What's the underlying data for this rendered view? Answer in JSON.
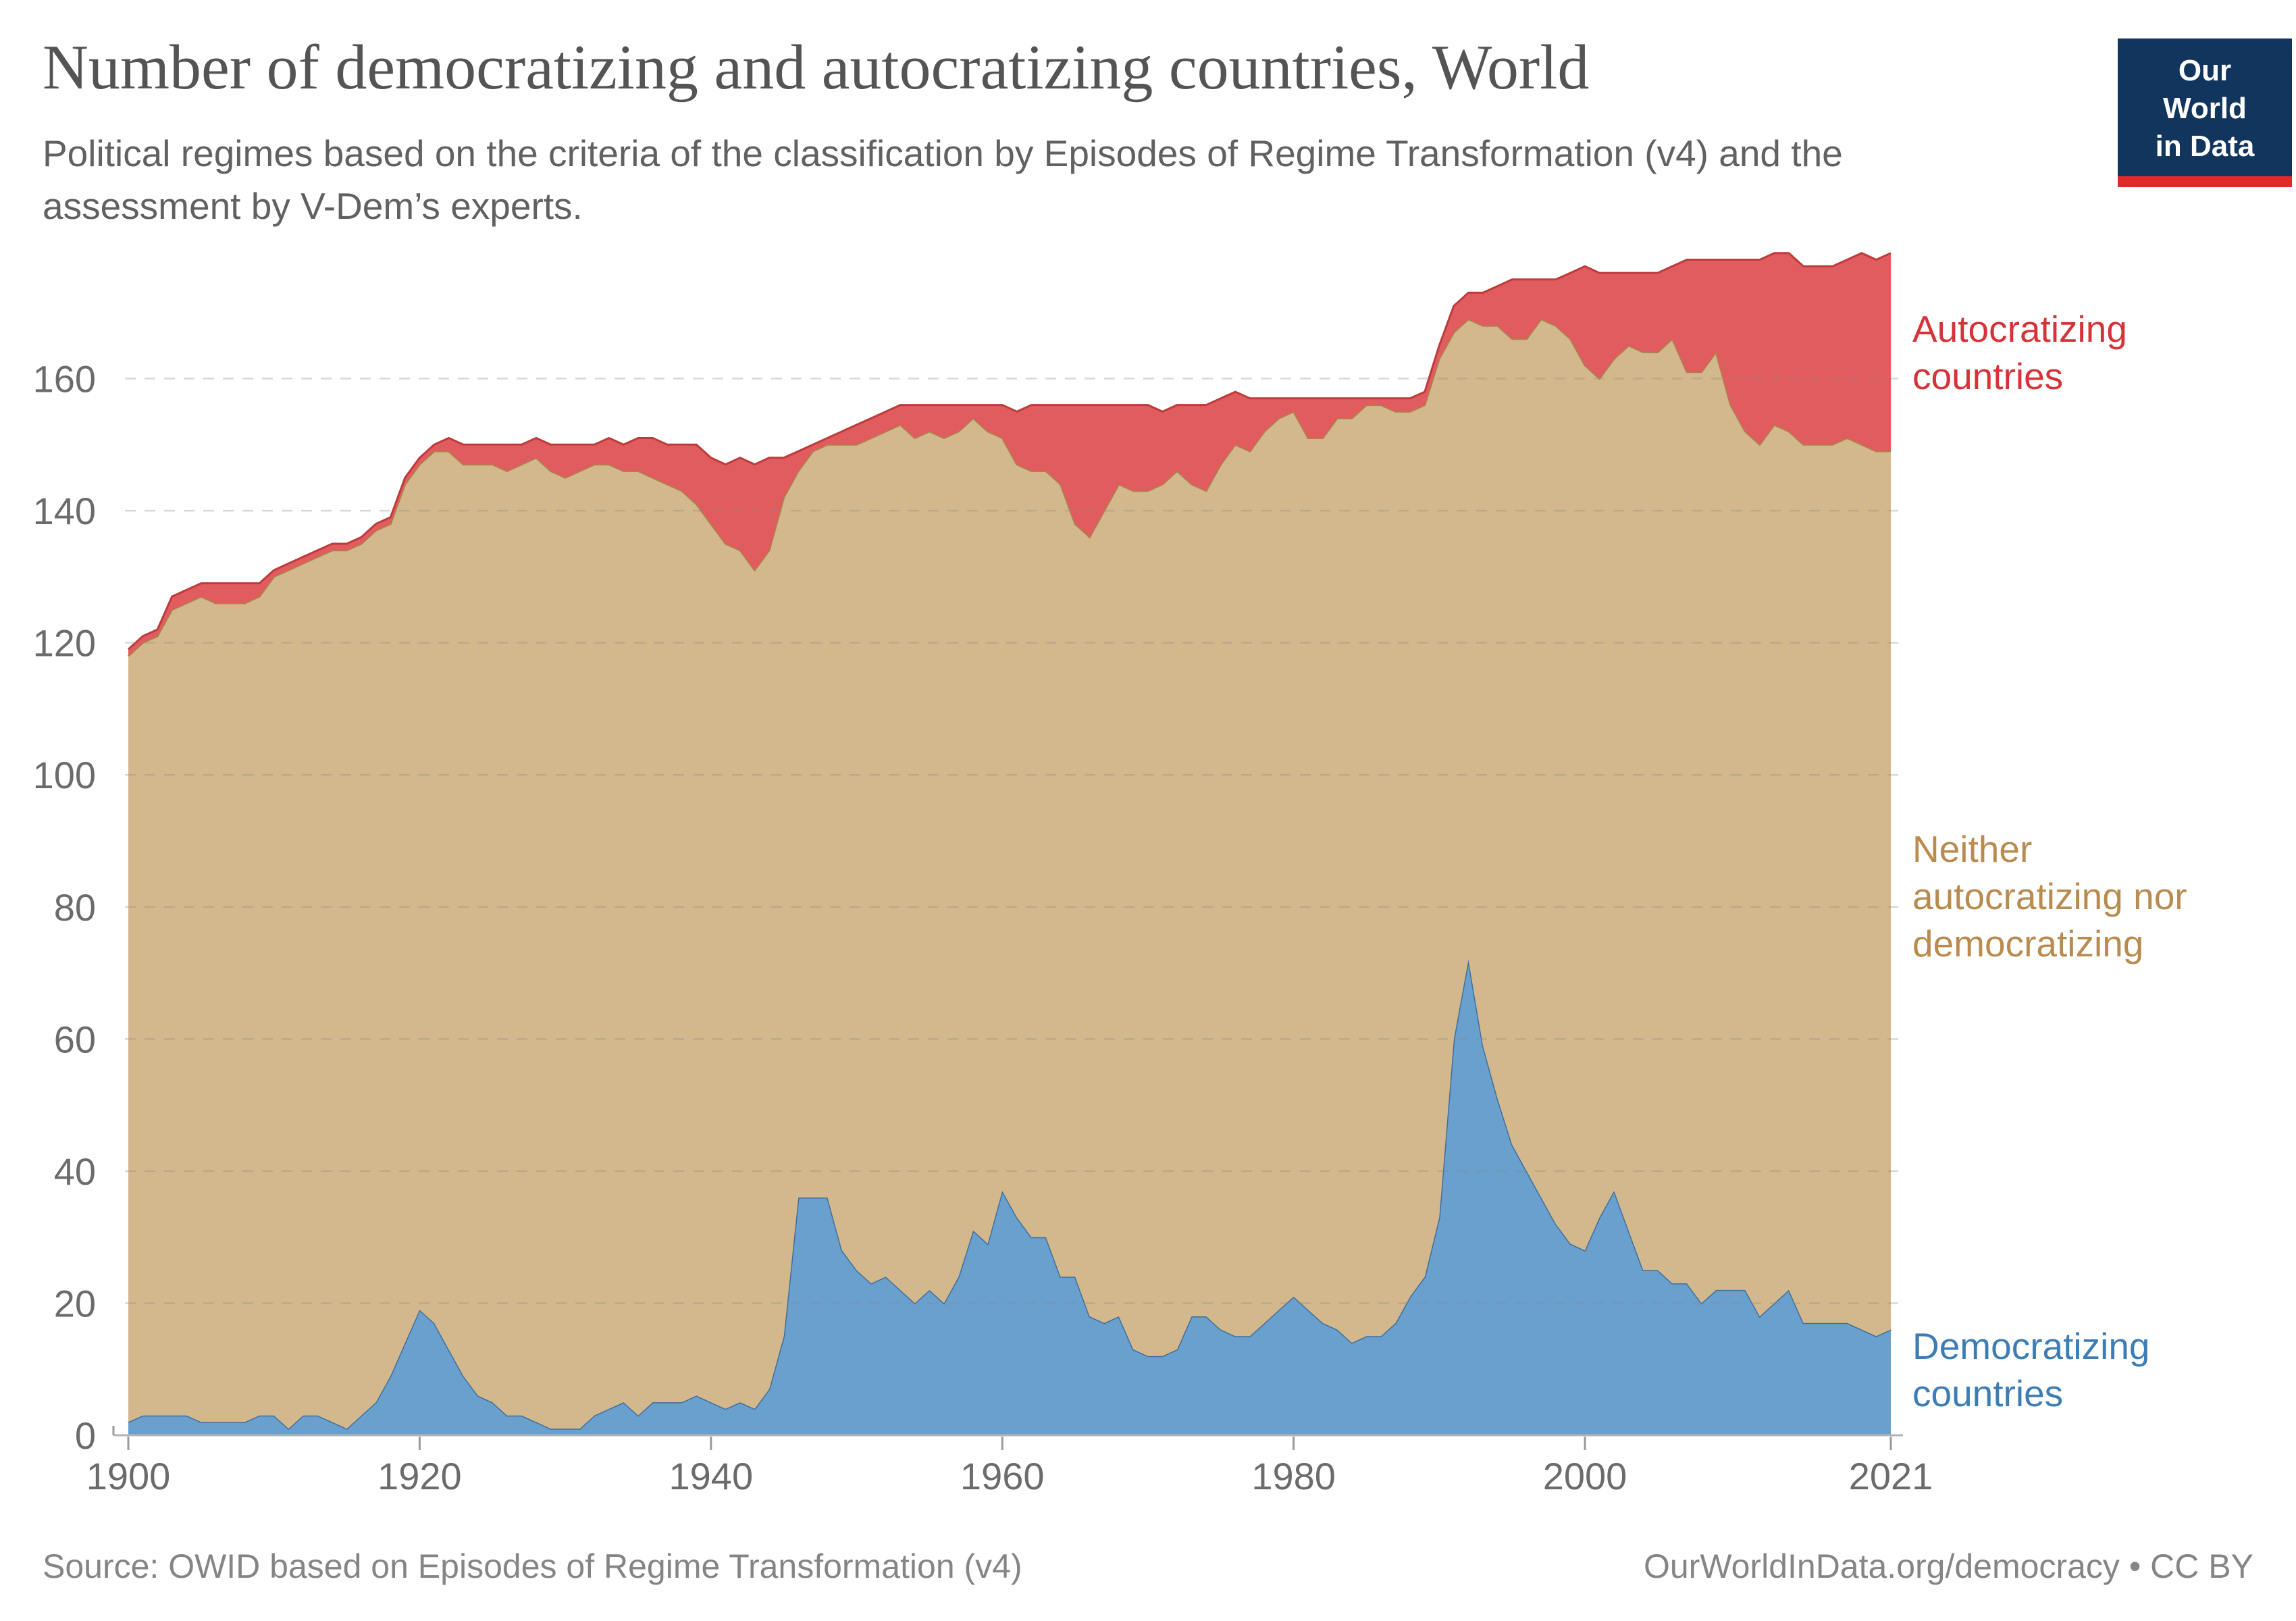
{
  "header": {
    "title": "Number of democratizing and autocratizing countries, World",
    "subtitle": "Political regimes based on the criteria of the classification by Episodes of Regime Transformation (v4) and the assessment by V-Dem’s experts.",
    "logo": {
      "line1": "Our World",
      "line2": "in Data"
    }
  },
  "legend": {
    "autocratizing": "Autocratizing\ncountries",
    "neither": "Neither\nautocratizing nor\ndemocratizing",
    "democratizing": "Democratizing\ncountries"
  },
  "footer": {
    "source": "Source: OWID based on Episodes of Regime Transformation (v4)",
    "site": "OurWorldInData.org/democracy • CC BY"
  },
  "colors": {
    "autocratizing_fill": "#e15c5e",
    "autocratizing_edge": "#be3b3b",
    "autocratizing_text": "#d63338",
    "neither_fill": "#d4b88d",
    "neither_edge": "#a3874a",
    "neither_text": "#b98b4e",
    "democratizing_fill": "#69a0ce",
    "democratizing_edge": "#3d6f9f",
    "democratizing_text": "#3d7db5",
    "logo_navy": "#12355e",
    "logo_red": "#e02a28"
  },
  "chart_data": {
    "type": "area",
    "stacked": true,
    "title": "Number of democratizing and autocratizing countries, World",
    "xlabel": "",
    "ylabel": "",
    "ylim": [
      0,
      160
    ],
    "y_ticks": [
      0,
      20,
      40,
      60,
      80,
      100,
      120,
      140,
      160
    ],
    "x_ticks": [
      1900,
      1920,
      1940,
      1960,
      1980,
      2000,
      2021
    ],
    "grid": true,
    "legend_position": "right",
    "x": [
      1900,
      1901,
      1902,
      1903,
      1904,
      1905,
      1906,
      1907,
      1908,
      1909,
      1910,
      1911,
      1912,
      1913,
      1914,
      1915,
      1916,
      1917,
      1918,
      1919,
      1920,
      1921,
      1922,
      1923,
      1924,
      1925,
      1926,
      1927,
      1928,
      1929,
      1930,
      1931,
      1932,
      1933,
      1934,
      1935,
      1936,
      1937,
      1938,
      1939,
      1940,
      1941,
      1942,
      1943,
      1944,
      1945,
      1946,
      1947,
      1948,
      1949,
      1950,
      1951,
      1952,
      1953,
      1954,
      1955,
      1956,
      1957,
      1958,
      1959,
      1960,
      1961,
      1962,
      1963,
      1964,
      1965,
      1966,
      1967,
      1968,
      1969,
      1970,
      1971,
      1972,
      1973,
      1974,
      1975,
      1976,
      1977,
      1978,
      1979,
      1980,
      1981,
      1982,
      1983,
      1984,
      1985,
      1986,
      1987,
      1988,
      1989,
      1990,
      1991,
      1992,
      1993,
      1994,
      1995,
      1996,
      1997,
      1998,
      1999,
      2000,
      2001,
      2002,
      2003,
      2004,
      2005,
      2006,
      2007,
      2008,
      2009,
      2010,
      2011,
      2012,
      2013,
      2014,
      2015,
      2016,
      2017,
      2018,
      2019,
      2020,
      2021
    ],
    "series": [
      {
        "name": "democratizing",
        "label": "Democratizing countries",
        "color": "#69a0ce",
        "edge_color": "#3d6f9f",
        "values": [
          2,
          3,
          3,
          3,
          3,
          2,
          2,
          2,
          2,
          3,
          3,
          1,
          3,
          3,
          2,
          1,
          3,
          5,
          9,
          14,
          19,
          17,
          13,
          9,
          6,
          5,
          3,
          3,
          2,
          1,
          1,
          1,
          3,
          4,
          5,
          3,
          5,
          5,
          5,
          6,
          5,
          4,
          5,
          4,
          7,
          15,
          36,
          36,
          36,
          28,
          25,
          23,
          24,
          22,
          20,
          22,
          20,
          24,
          31,
          29,
          37,
          33,
          30,
          30,
          24,
          24,
          18,
          17,
          18,
          13,
          12,
          12,
          13,
          18,
          18,
          16,
          15,
          15,
          17,
          19,
          21,
          19,
          17,
          16,
          14,
          15,
          15,
          17,
          21,
          24,
          33,
          60,
          72,
          59,
          51,
          44,
          40,
          36,
          32,
          29,
          28,
          33,
          37,
          31,
          25,
          25,
          23,
          23,
          20,
          22,
          22,
          22,
          18,
          20,
          22,
          17,
          17,
          17,
          17,
          16,
          15,
          16
        ]
      },
      {
        "name": "neither",
        "label": "Neither autocratizing nor democratizing",
        "color": "#d4b88d",
        "edge_color": "#a3874a",
        "values": [
          116,
          117,
          118,
          122,
          123,
          125,
          124,
          124,
          124,
          124,
          127,
          130,
          129,
          130,
          132,
          133,
          132,
          132,
          129,
          130,
          128,
          132,
          136,
          138,
          141,
          142,
          143,
          144,
          146,
          145,
          144,
          145,
          144,
          143,
          141,
          143,
          140,
          139,
          138,
          135,
          133,
          131,
          129,
          127,
          127,
          127,
          110,
          113,
          114,
          122,
          125,
          128,
          128,
          131,
          131,
          130,
          131,
          128,
          123,
          123,
          114,
          114,
          116,
          116,
          120,
          114,
          118,
          123,
          126,
          130,
          131,
          132,
          133,
          126,
          125,
          131,
          135,
          134,
          135,
          135,
          134,
          132,
          134,
          138,
          140,
          141,
          141,
          138,
          134,
          132,
          130,
          107,
          97,
          109,
          117,
          122,
          126,
          133,
          136,
          137,
          134,
          127,
          126,
          134,
          139,
          139,
          143,
          138,
          141,
          142,
          134,
          130,
          132,
          133,
          130,
          133,
          133,
          133,
          134,
          134,
          134,
          133
        ]
      },
      {
        "name": "autocratizing",
        "label": "Autocratizing countries",
        "color": "#e15c5e",
        "edge_color": "#be3b3b",
        "values": [
          1,
          1,
          1,
          2,
          2,
          2,
          3,
          3,
          3,
          2,
          1,
          1,
          1,
          1,
          1,
          1,
          1,
          1,
          1,
          1,
          1,
          1,
          2,
          3,
          3,
          3,
          4,
          3,
          3,
          4,
          5,
          4,
          3,
          4,
          4,
          5,
          6,
          6,
          7,
          9,
          10,
          12,
          14,
          16,
          14,
          6,
          3,
          1,
          1,
          2,
          3,
          3,
          3,
          3,
          5,
          4,
          5,
          4,
          2,
          4,
          5,
          8,
          10,
          10,
          12,
          18,
          20,
          16,
          12,
          13,
          13,
          11,
          10,
          12,
          13,
          10,
          8,
          8,
          5,
          3,
          2,
          6,
          6,
          3,
          3,
          1,
          1,
          2,
          2,
          2,
          2,
          4,
          4,
          5,
          6,
          9,
          9,
          6,
          7,
          10,
          15,
          16,
          13,
          11,
          12,
          12,
          11,
          17,
          17,
          14,
          22,
          26,
          28,
          26,
          27,
          27,
          27,
          27,
          27,
          29,
          29,
          30
        ]
      }
    ]
  }
}
